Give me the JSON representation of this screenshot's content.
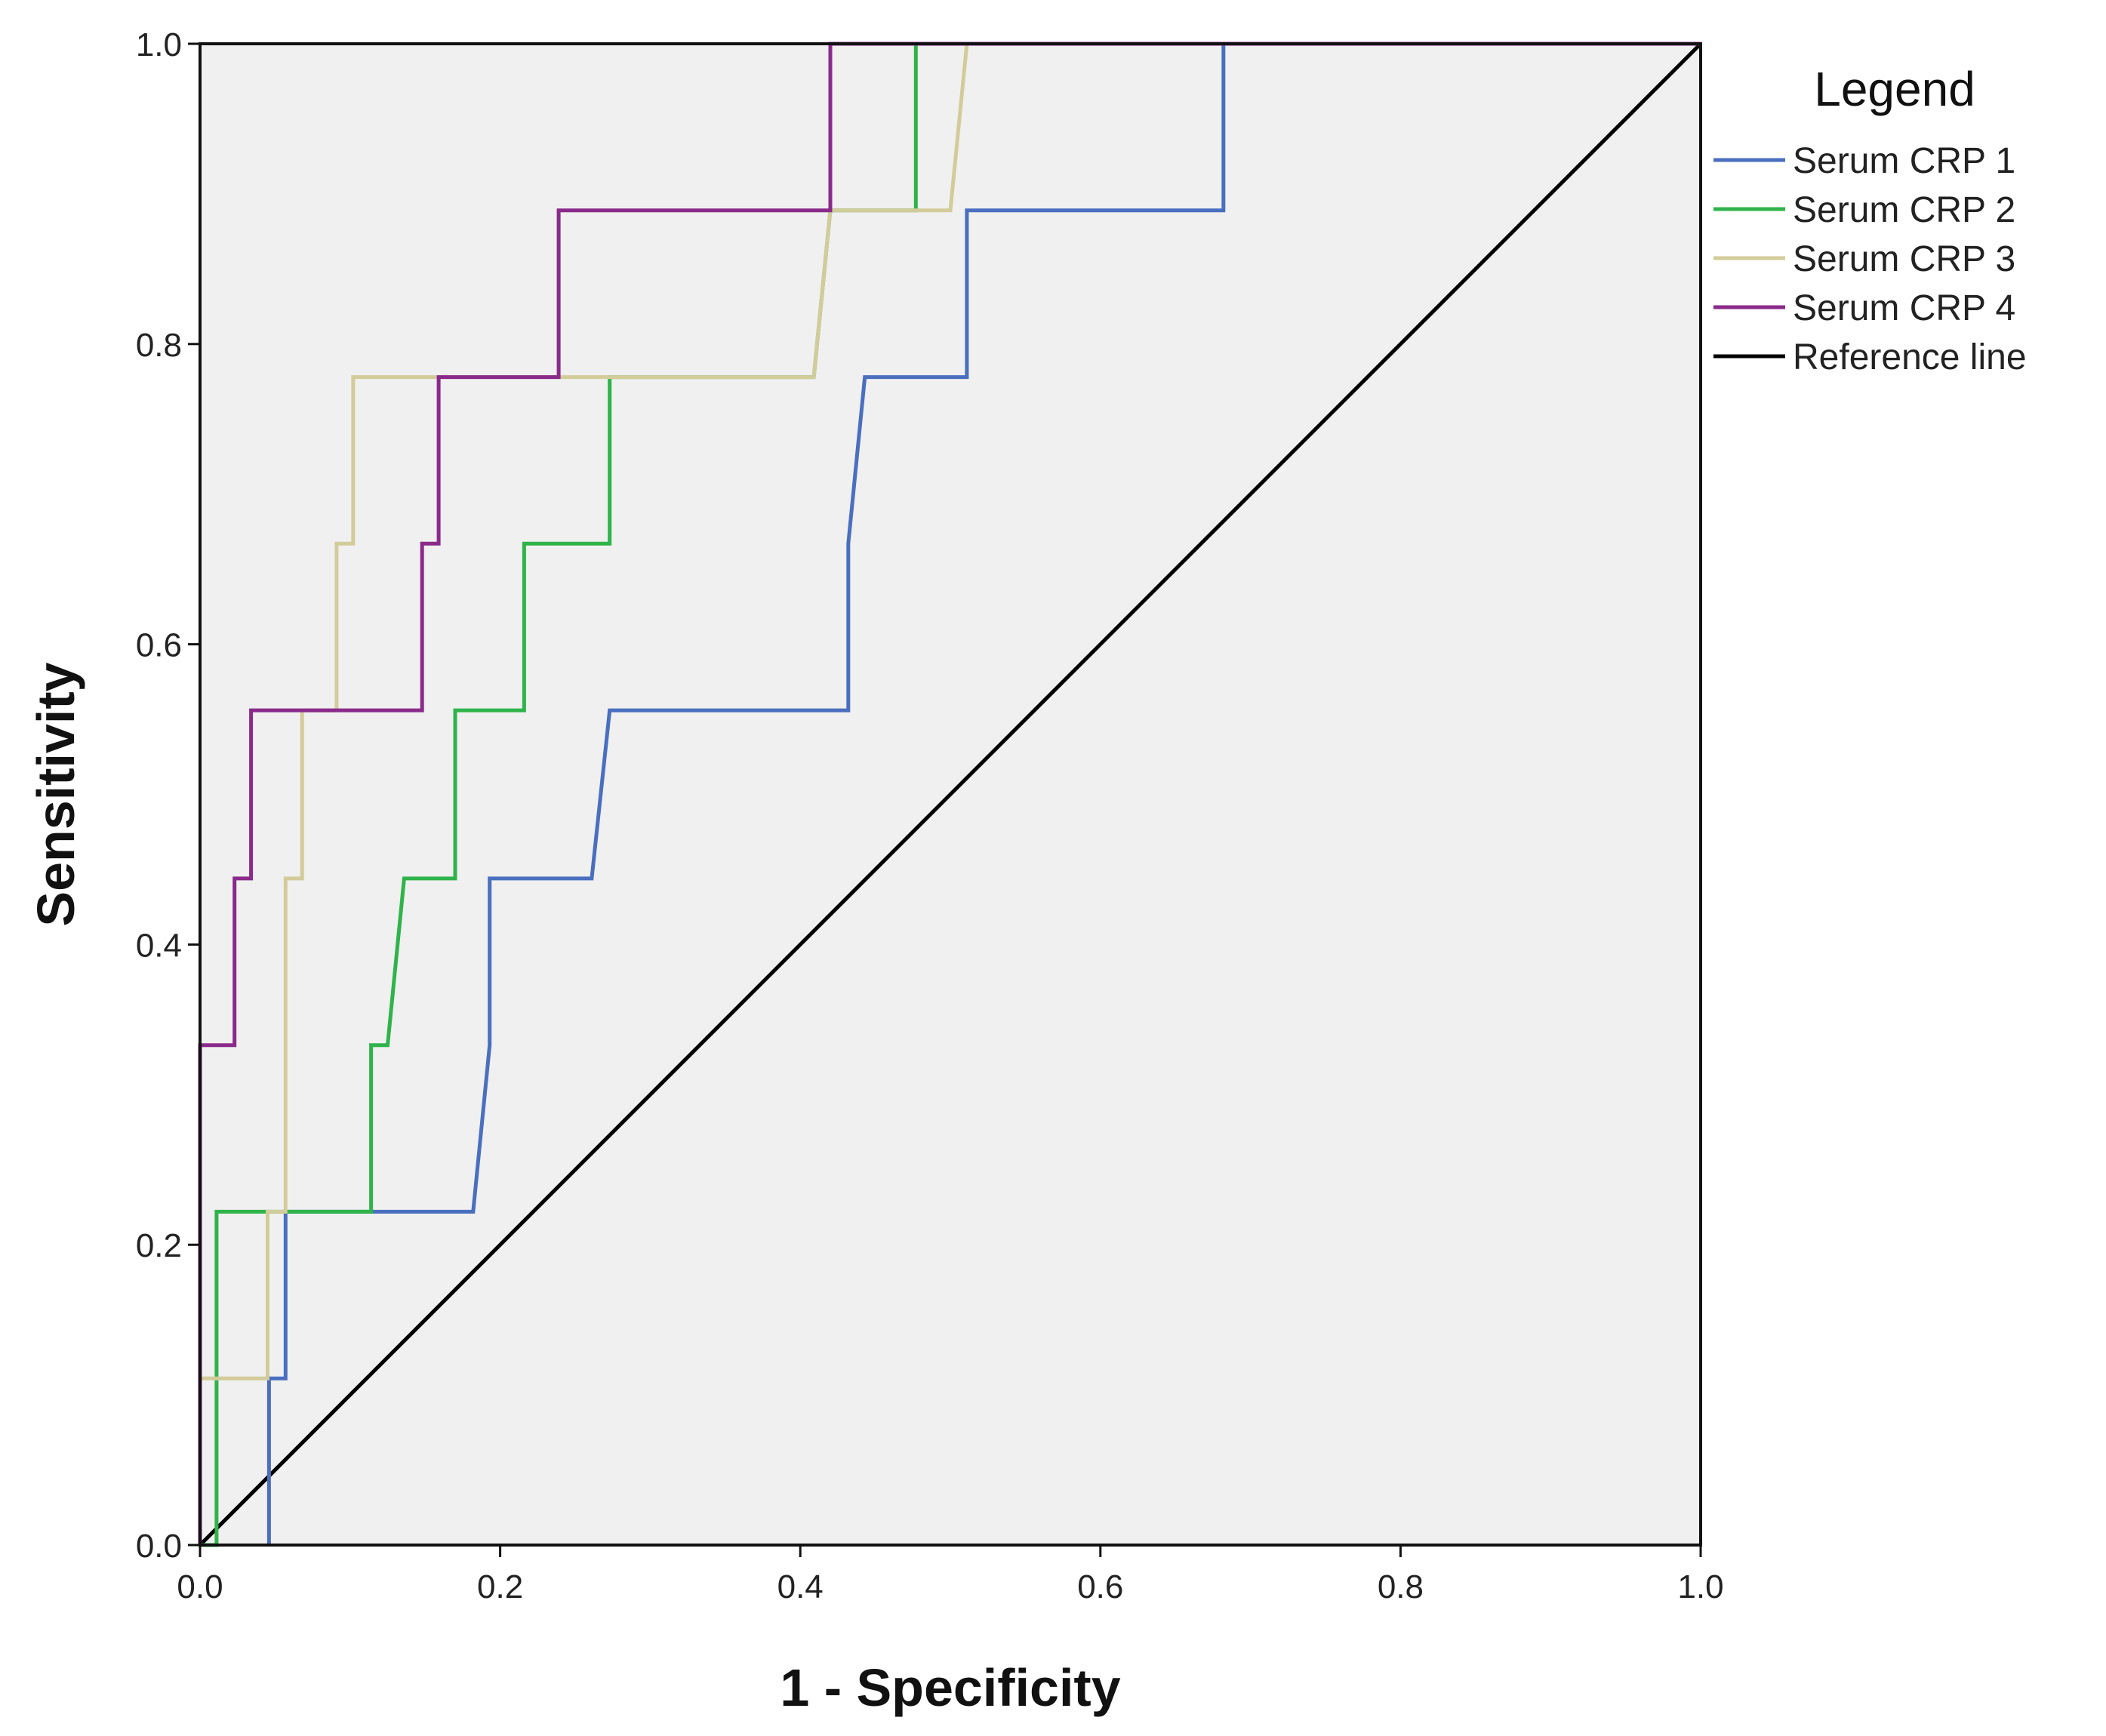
{
  "chart_data": {
    "type": "line",
    "title": "",
    "xlabel": "1 - Specificity",
    "ylabel": "Sensitivity",
    "xlim": [
      0,
      1
    ],
    "ylim": [
      0,
      1
    ],
    "xticks": [
      "0.0",
      "0.2",
      "0.4",
      "0.6",
      "0.8",
      "1.0"
    ],
    "yticks": [
      "0.0",
      "0.2",
      "0.4",
      "0.6",
      "0.8",
      "1.0"
    ],
    "xtick_values": [
      0,
      0.2,
      0.4,
      0.6,
      0.8,
      1.0
    ],
    "ytick_values": [
      0,
      0.2,
      0.4,
      0.6,
      0.8,
      1.0
    ],
    "plot_background": "#f0f0f0",
    "legend_title": "Legend",
    "legend_position": "right",
    "series": [
      {
        "name": "Serum CRP 1",
        "color": "#4a6fbf",
        "points": [
          [
            0.046,
            0
          ],
          [
            0.046,
            0.111
          ],
          [
            0.057,
            0.111
          ],
          [
            0.057,
            0.222
          ],
          [
            0.182,
            0.222
          ],
          [
            0.193,
            0.333
          ],
          [
            0.193,
            0.444
          ],
          [
            0.261,
            0.444
          ],
          [
            0.273,
            0.556
          ],
          [
            0.432,
            0.556
          ],
          [
            0.432,
            0.667
          ],
          [
            0.443,
            0.778
          ],
          [
            0.511,
            0.778
          ],
          [
            0.511,
            0.889
          ],
          [
            0.682,
            0.889
          ],
          [
            0.682,
            1.0
          ],
          [
            1.0,
            1.0
          ]
        ]
      },
      {
        "name": "Serum CRP 2",
        "color": "#2fb34a",
        "points": [
          [
            0,
            0
          ],
          [
            0.011,
            0
          ],
          [
            0.011,
            0.222
          ],
          [
            0.114,
            0.222
          ],
          [
            0.114,
            0.333
          ],
          [
            0.125,
            0.333
          ],
          [
            0.136,
            0.444
          ],
          [
            0.17,
            0.444
          ],
          [
            0.17,
            0.556
          ],
          [
            0.216,
            0.556
          ],
          [
            0.216,
            0.667
          ],
          [
            0.273,
            0.667
          ],
          [
            0.273,
            0.778
          ],
          [
            0.409,
            0.778
          ],
          [
            0.42,
            0.889
          ],
          [
            0.477,
            0.889
          ],
          [
            0.477,
            1.0
          ],
          [
            1.0,
            1.0
          ]
        ]
      },
      {
        "name": "Serum CRP 3",
        "color": "#d2cc9a",
        "points": [
          [
            0,
            0
          ],
          [
            0,
            0.111
          ],
          [
            0.045,
            0.111
          ],
          [
            0.045,
            0.222
          ],
          [
            0.057,
            0.222
          ],
          [
            0.057,
            0.444
          ],
          [
            0.068,
            0.444
          ],
          [
            0.068,
            0.556
          ],
          [
            0.091,
            0.556
          ],
          [
            0.091,
            0.667
          ],
          [
            0.102,
            0.667
          ],
          [
            0.102,
            0.778
          ],
          [
            0.409,
            0.778
          ],
          [
            0.42,
            0.889
          ],
          [
            0.5,
            0.889
          ],
          [
            0.511,
            1.0
          ],
          [
            1.0,
            1.0
          ]
        ]
      },
      {
        "name": "Serum CRP 4",
        "color": "#8a2a8a",
        "points": [
          [
            0,
            0
          ],
          [
            0,
            0.333
          ],
          [
            0.023,
            0.333
          ],
          [
            0.023,
            0.444
          ],
          [
            0.034,
            0.444
          ],
          [
            0.034,
            0.556
          ],
          [
            0.148,
            0.556
          ],
          [
            0.148,
            0.667
          ],
          [
            0.159,
            0.667
          ],
          [
            0.159,
            0.778
          ],
          [
            0.239,
            0.778
          ],
          [
            0.239,
            0.889
          ],
          [
            0.42,
            0.889
          ],
          [
            0.42,
            1.0
          ],
          [
            1.0,
            1.0
          ]
        ]
      },
      {
        "name": "Reference line",
        "color": "#000000",
        "points": [
          [
            0,
            0
          ],
          [
            1,
            1
          ]
        ]
      }
    ]
  }
}
